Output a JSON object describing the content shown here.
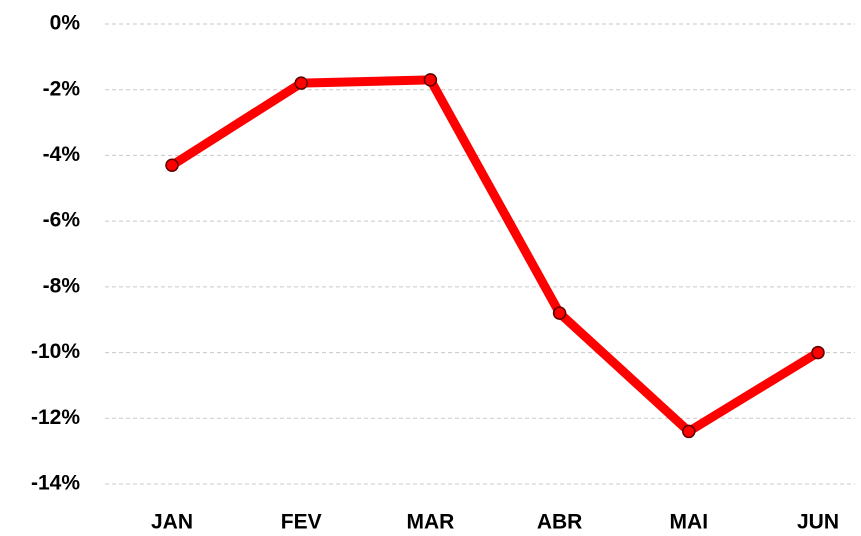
{
  "chart_data": {
    "type": "line",
    "categories": [
      "JAN",
      "FEV",
      "MAR",
      "ABR",
      "MAI",
      "JUN"
    ],
    "series": [
      {
        "color": "#ff0000",
        "values": [
          -4.3,
          -1.8,
          -1.7,
          -8.8,
          -12.4,
          -10.0
        ]
      }
    ],
    "ylim": [
      -14,
      0
    ],
    "yticks": [
      {
        "value": 0,
        "label": "0%"
      },
      {
        "value": -2,
        "label": "-2%"
      },
      {
        "value": -4,
        "label": "-4%"
      },
      {
        "value": -6,
        "label": "-6%"
      },
      {
        "value": -8,
        "label": "-8%"
      },
      {
        "value": -10,
        "label": "-10%"
      },
      {
        "value": -12,
        "label": "-12%"
      },
      {
        "value": -14,
        "label": "-14%"
      }
    ],
    "grid": true
  }
}
